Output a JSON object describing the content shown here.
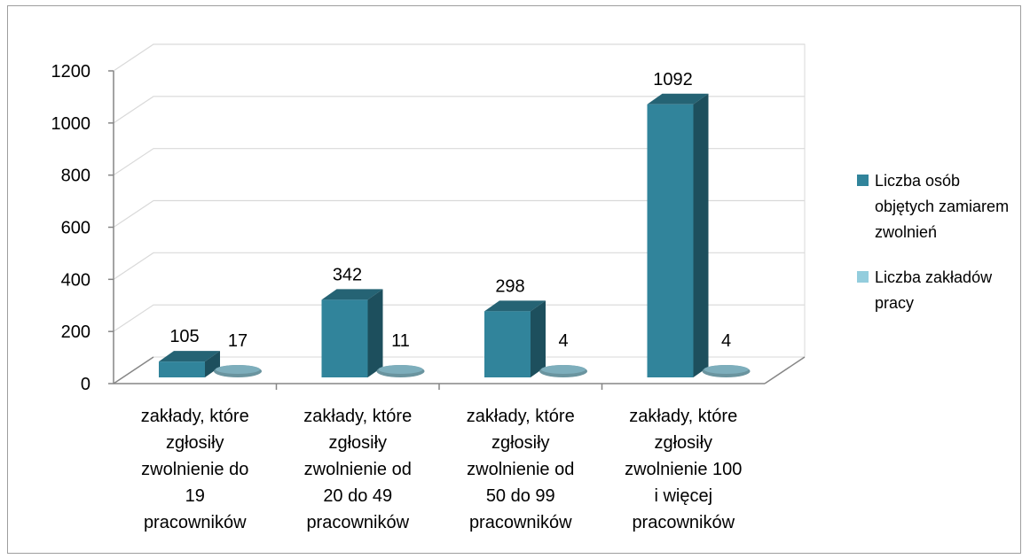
{
  "chart_data": {
    "type": "bar",
    "categories": [
      "zakłady, które zgłosiły zwolnienie do 19 pracowników",
      "zakłady, które zgłosiły zwolnienie od 20 do 49 pracowników",
      "zakłady, które zgłosiły zwolnienie od 50 do 99 pracowników",
      "zakłady, które zgłosiły zwolnienie 100 i więcej pracowników"
    ],
    "category_label_lines": [
      [
        "zakłady, które",
        "zgłosiły",
        "zwolnienie do",
        "19",
        "pracowników"
      ],
      [
        "zakłady, które",
        "zgłosiły",
        "zwolnienie od",
        "20 do 49",
        "pracowników"
      ],
      [
        "zakłady, które",
        "zgłosiły",
        "zwolnienie od",
        "50 do 99",
        "pracowników"
      ],
      [
        "zakłady, które",
        "zgłosiły",
        "zwolnienie 100",
        "i więcej",
        "pracowników"
      ]
    ],
    "series": [
      {
        "name": "Liczba osób objętych zamiarem zwolnień",
        "values": [
          105,
          342,
          298,
          1092
        ],
        "color": "#31849b"
      },
      {
        "name": "Liczba zakładów pracy",
        "values": [
          17,
          11,
          4,
          4
        ],
        "color": "#93cddd"
      }
    ],
    "ylim": [
      0,
      1200
    ],
    "yticks": [
      0,
      200,
      400,
      600,
      800,
      1000,
      1200
    ],
    "grid": true,
    "legend_position": "right",
    "style": "3d-column"
  }
}
